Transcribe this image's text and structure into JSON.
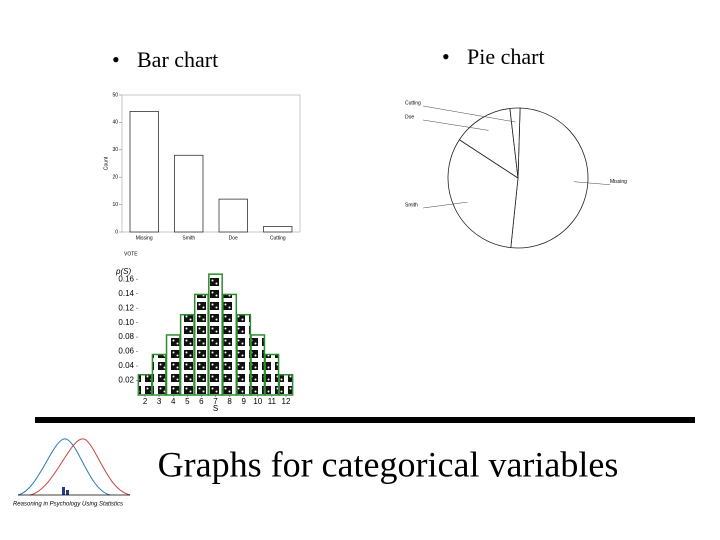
{
  "slide": {
    "bullets": [
      "Bar chart",
      "Pie chart"
    ],
    "title": "Graphs for categorical variables",
    "logo_text": "Reasoning in Psychology Using Statistics"
  },
  "chart_data": [
    {
      "type": "bar",
      "categories": [
        "Missing",
        "Smith",
        "Doe",
        "Cutting"
      ],
      "values": [
        44,
        28,
        12,
        2
      ],
      "color": "#ffffff",
      "ylim": [
        0,
        50
      ],
      "yticks": [
        0,
        10,
        20,
        30,
        40,
        50
      ],
      "ylabel": "Count",
      "xlabel": "VOTE"
    },
    {
      "type": "pie",
      "categories": [
        "Missing",
        "Smith",
        "Doe",
        "Cutting"
      ],
      "values": [
        44,
        28,
        12,
        2
      ],
      "color": "#ffffff"
    },
    {
      "type": "dice",
      "x": [
        2,
        3,
        4,
        5,
        6,
        7,
        8,
        9,
        10,
        11,
        12
      ],
      "values": [
        0.028,
        0.056,
        0.083,
        0.111,
        0.139,
        0.167,
        0.139,
        0.111,
        0.083,
        0.056,
        0.028
      ],
      "color": "#2e8b2e",
      "xlim": [
        1.5,
        12.5
      ],
      "xticks": [
        2,
        3,
        4,
        5,
        6,
        7,
        8,
        9,
        10,
        11,
        12
      ],
      "ylim": [
        0,
        0.17
      ],
      "yticks": [
        0.02,
        0.04,
        0.06,
        0.08,
        {
          "value": 0.1,
          "label": "0.10"
        },
        0.12,
        0.14,
        0.16
      ],
      "ylabel": "p(S)",
      "xlabel": "S"
    }
  ]
}
